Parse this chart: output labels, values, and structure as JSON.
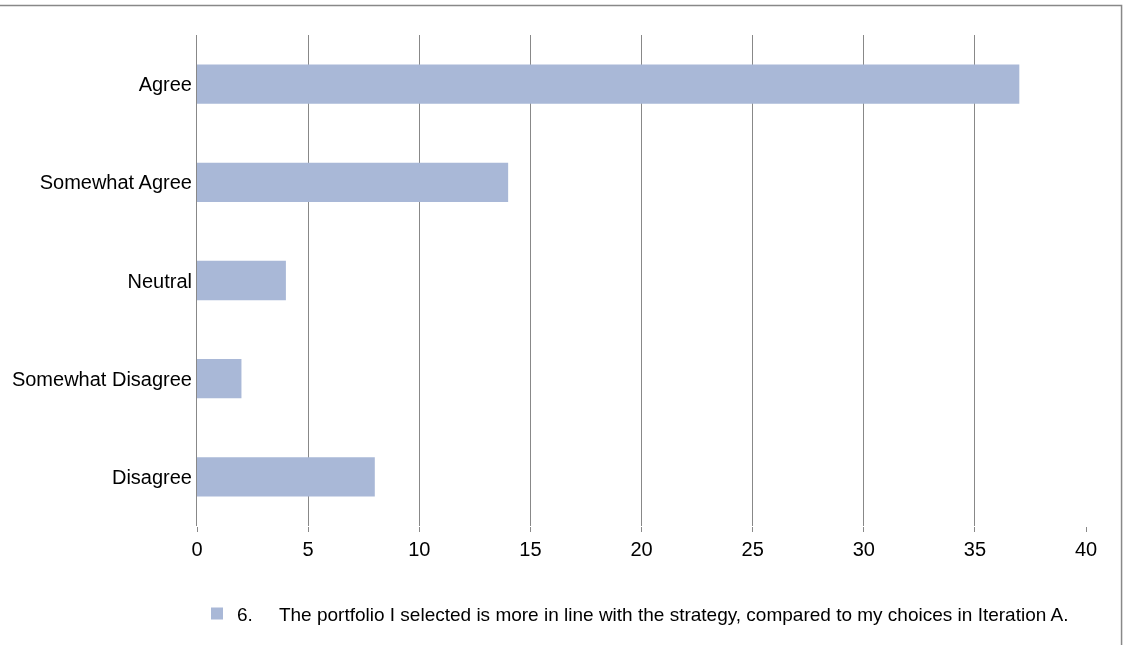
{
  "chart_data": {
    "type": "bar",
    "orientation": "horizontal",
    "categories": [
      "Agree",
      "Somewhat Agree",
      "Neutral",
      "Somewhat Disagree",
      "Disagree"
    ],
    "series": [
      {
        "name": "6.     The portfolio I selected is more in line with the strategy, compared to my choices in Iteration A.",
        "color": "#a9b8d7",
        "values": [
          37,
          14,
          4,
          2,
          8
        ]
      }
    ],
    "xlim": [
      0,
      40
    ],
    "xticks": [
      0,
      5,
      10,
      15,
      20,
      25,
      30,
      35,
      40
    ],
    "grid": "x",
    "legend": "bottom"
  }
}
